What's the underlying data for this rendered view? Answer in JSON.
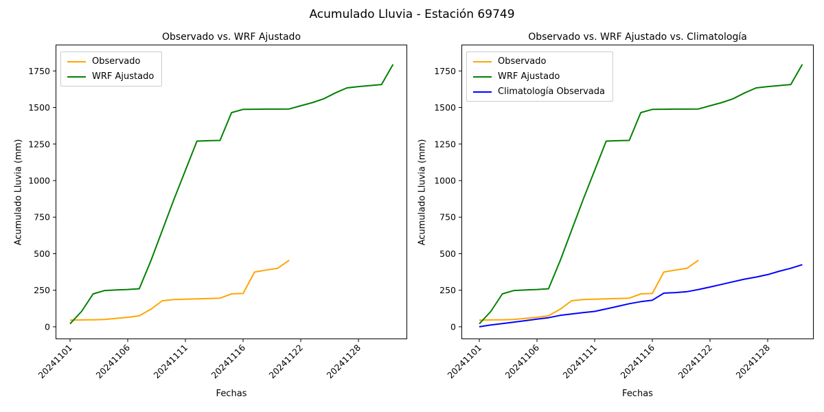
{
  "figure": {
    "title": "Acumulado Lluvia - Estación 69749"
  },
  "colors": {
    "observado": "#FFA500",
    "wrf": "#008000",
    "climatologia": "#0000FF",
    "spine": "#000000",
    "legend_border": "#cccccc"
  },
  "chart_data": [
    {
      "type": "line",
      "title": "Observado vs. WRF Ajustado",
      "xlabel": "Fechas",
      "ylabel": "Acumulado Lluvia (mm)",
      "x_tick_labels": [
        "20241101",
        "20241106",
        "20241111",
        "20241116",
        "20241122",
        "20241128"
      ],
      "x_tick_positions": [
        0,
        5,
        10,
        15,
        20,
        25
      ],
      "x_tick_rotation": 45,
      "y_ticks": [
        0,
        250,
        500,
        750,
        1000,
        1250,
        1500,
        1750
      ],
      "ylim": [
        -85,
        1930
      ],
      "n_points": 29,
      "grid": false,
      "legend_position": "upper-left",
      "series": [
        {
          "name": "Observado",
          "color": "#FFA500",
          "values": [
            45,
            47,
            48,
            50,
            58,
            65,
            75,
            120,
            178,
            186,
            189,
            191,
            193,
            196,
            225,
            228,
            375,
            388,
            400,
            455
          ]
        },
        {
          "name": "WRF Ajustado",
          "color": "#008000",
          "values": [
            20,
            105,
            225,
            248,
            252,
            255,
            260,
            450,
            660,
            870,
            1070,
            1270,
            1273,
            1275,
            1465,
            1487,
            1488,
            1489,
            1489,
            1490,
            1512,
            1533,
            1560,
            1600,
            1634,
            1643,
            1650,
            1657,
            1795
          ]
        }
      ]
    },
    {
      "type": "line",
      "title": "Observado vs. WRF Ajustado vs. Climatología",
      "xlabel": "Fechas",
      "ylabel": "Acumulado Lluvia (mm)",
      "x_tick_labels": [
        "20241101",
        "20241106",
        "20241111",
        "20241116",
        "20241122",
        "20241128"
      ],
      "x_tick_positions": [
        0,
        5,
        10,
        15,
        20,
        25
      ],
      "x_tick_rotation": 45,
      "y_ticks": [
        0,
        250,
        500,
        750,
        1000,
        1250,
        1500,
        1750
      ],
      "ylim": [
        -85,
        1930
      ],
      "n_points": 29,
      "grid": false,
      "legend_position": "upper-left",
      "series": [
        {
          "name": "Observado",
          "color": "#FFA500",
          "values": [
            45,
            47,
            48,
            50,
            58,
            65,
            75,
            120,
            178,
            186,
            189,
            191,
            193,
            196,
            225,
            228,
            375,
            388,
            400,
            455
          ]
        },
        {
          "name": "WRF Ajustado",
          "color": "#008000",
          "values": [
            20,
            105,
            225,
            248,
            252,
            255,
            260,
            450,
            660,
            870,
            1070,
            1270,
            1273,
            1275,
            1465,
            1487,
            1488,
            1489,
            1489,
            1490,
            1512,
            1533,
            1560,
            1600,
            1634,
            1643,
            1650,
            1657,
            1795
          ]
        },
        {
          "name": "Climatología Observada",
          "color": "#0000FF",
          "values": [
            0,
            12,
            22,
            32,
            42,
            52,
            62,
            78,
            88,
            97,
            105,
            122,
            140,
            158,
            172,
            182,
            230,
            234,
            240,
            255,
            272,
            290,
            308,
            326,
            340,
            357,
            380,
            400,
            425
          ]
        }
      ]
    }
  ]
}
